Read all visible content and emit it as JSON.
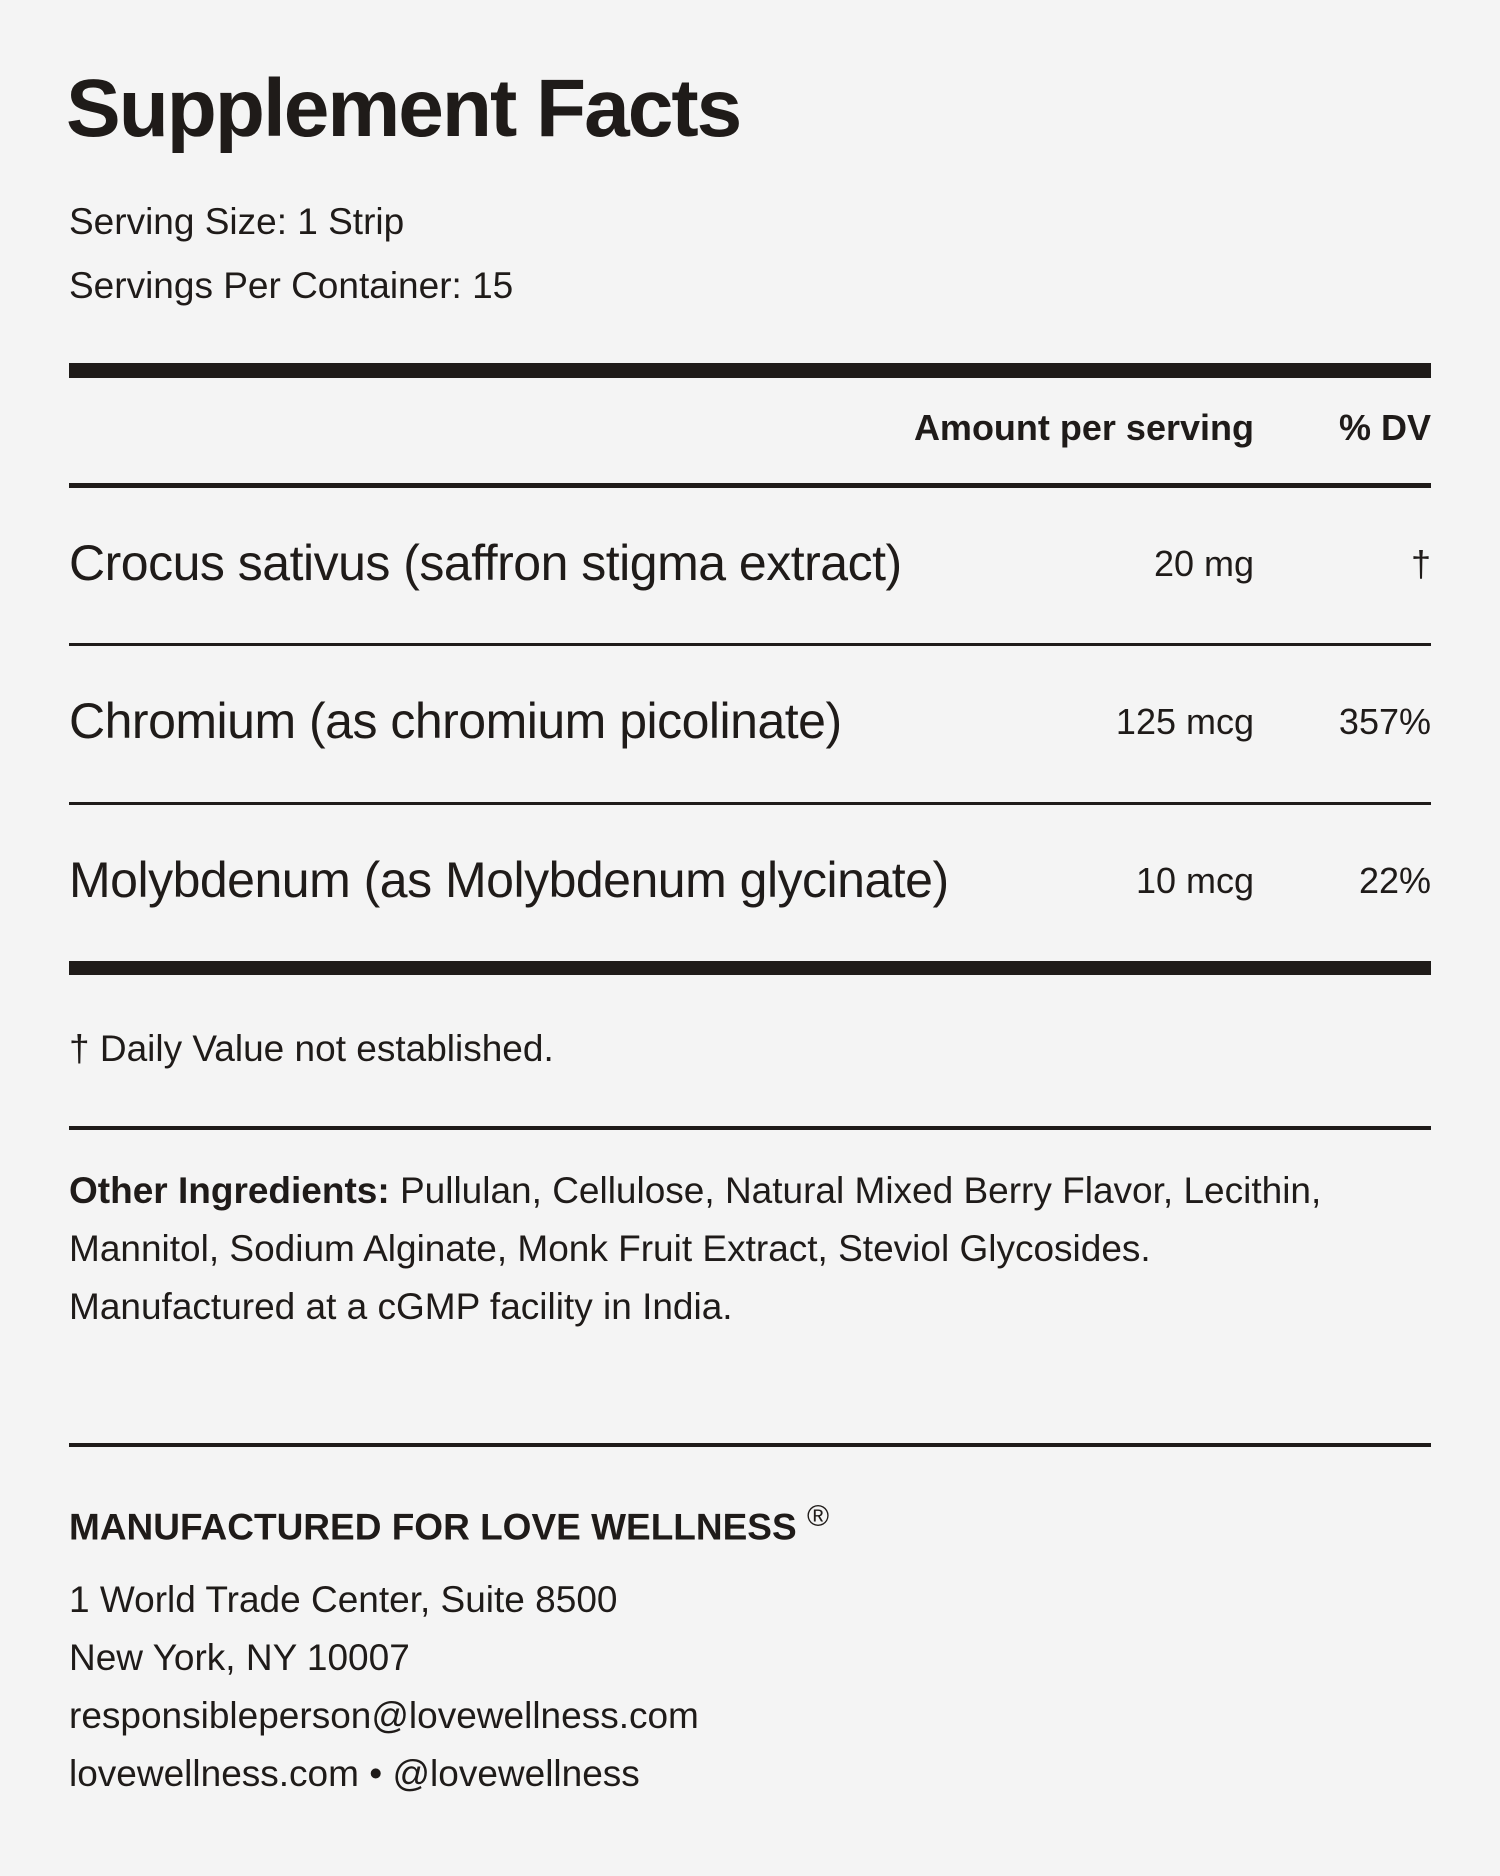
{
  "title": "Supplement Facts",
  "serving_size": "Serving Size: 1 Strip",
  "servings_per_container": "Servings Per Container: 15",
  "header": {
    "amount": "Amount per serving",
    "dv": "% DV"
  },
  "rows": [
    {
      "name": "Crocus sativus (saffron stigma extract)",
      "amount": "20 mg",
      "dv": "†"
    },
    {
      "name": "Chromium (as chromium picolinate)",
      "amount": "125 mcg",
      "dv": "357%"
    },
    {
      "name": "Molybdenum (as Molybdenum glycinate)",
      "amount": "10 mcg",
      "dv": "22%"
    }
  ],
  "footnote": "† Daily Value not established.",
  "other_ingredients": {
    "label": "Other Ingredients:",
    "text": " Pullulan, Cellulose, Natural Mixed Berry Flavor, Lecithin, Mannitol, Sodium Alginate, Monk Fruit Extract, Steviol Glycosides.",
    "facility": "Manufactured at a cGMP facility in India."
  },
  "manufacturer": {
    "heading": "MANUFACTURED FOR LOVE WELLNESS",
    "registered": "®",
    "address1": "1 World Trade Center, Suite 8500",
    "address2": "New York, NY 10007",
    "email": "responsibleperson@lovewellness.com",
    "web": "lovewellness.com • @lovewellness"
  }
}
